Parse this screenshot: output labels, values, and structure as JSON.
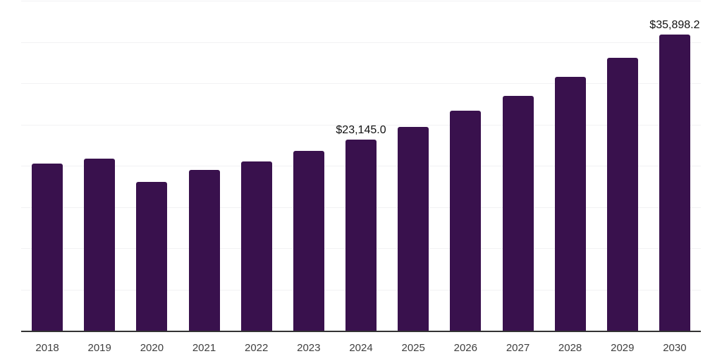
{
  "chart_data": {
    "type": "bar",
    "title": "",
    "xlabel": "",
    "ylabel": "",
    "categories": [
      "2018",
      "2019",
      "2020",
      "2021",
      "2022",
      "2023",
      "2024",
      "2025",
      "2026",
      "2027",
      "2028",
      "2029",
      "2030"
    ],
    "values": [
      20250,
      20850,
      18050,
      19500,
      20500,
      21850,
      23145.0,
      24750,
      26650,
      28500,
      30750,
      33100,
      35898.2
    ],
    "point_labels": [
      "",
      "",
      "",
      "",
      "",
      "",
      "$23,145.0",
      "",
      "",
      "",
      "",
      "",
      "$35,898.2"
    ],
    "ylim": [
      0,
      40000
    ],
    "grid_step": 5000,
    "grid": "horizontal-only",
    "legend": "none",
    "y_tick_labels_visible": false,
    "colors": {
      "bar": "#39114D",
      "gridline": "#f2f2f3",
      "axis": "#333333",
      "tick_label": "#3f3f3f",
      "value_label": "#111111",
      "background": "#ffffff"
    }
  }
}
